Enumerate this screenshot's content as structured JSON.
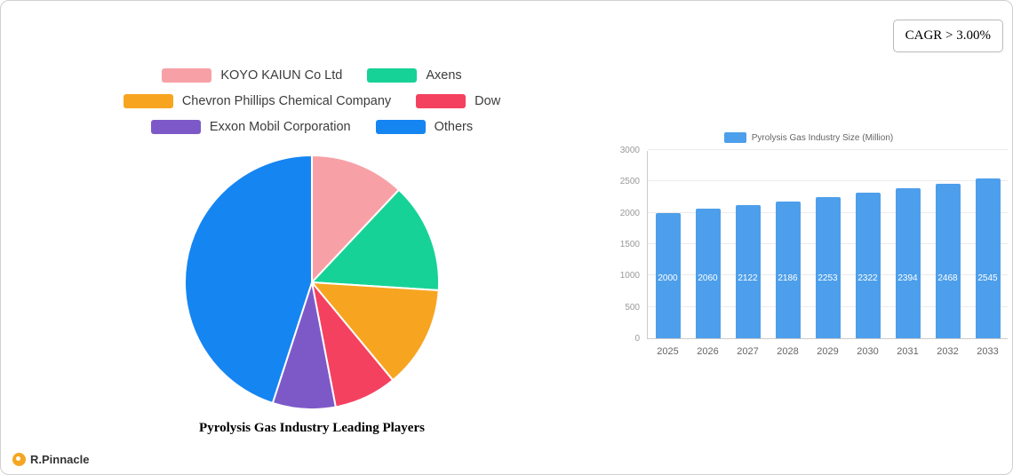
{
  "cagr": {
    "label": "CAGR > 3.00%"
  },
  "brand": {
    "name": "R.Pinnacle"
  },
  "chart_data": [
    {
      "type": "pie",
      "title": "Pyrolysis Gas Industry Leading Players",
      "legend_position": "top",
      "slices": [
        {
          "label": "KOYO KAIUN Co  Ltd",
          "value": 12,
          "color": "#F7A1A6"
        },
        {
          "label": "Axens",
          "value": 14,
          "color": "#17D296"
        },
        {
          "label": "Chevron Phillips Chemical Company",
          "value": 13,
          "color": "#F7A521"
        },
        {
          "label": "Dow",
          "value": 8,
          "color": "#F4415F"
        },
        {
          "label": "Exxon Mobil Corporation",
          "value": 8,
          "color": "#7D59C8"
        },
        {
          "label": "Others",
          "value": 45,
          "color": "#1585F2"
        }
      ],
      "legend_rows": [
        [
          0,
          1
        ],
        [
          2,
          3
        ],
        [
          4,
          5
        ]
      ]
    },
    {
      "type": "bar",
      "legend": "Pyrolysis Gas Industry Size (Million)",
      "bar_color": "#4D9FEB",
      "categories": [
        "2025",
        "2026",
        "2027",
        "2028",
        "2029",
        "2030",
        "2031",
        "2032",
        "2033"
      ],
      "values": [
        2000,
        2060,
        2122,
        2186,
        2253,
        2322,
        2394,
        2468,
        2545
      ],
      "y_ticks": [
        0,
        500,
        1000,
        1500,
        2000,
        2500,
        3000
      ],
      "ylim": [
        0,
        3000
      ],
      "grid": true,
      "legend_position": "top"
    }
  ]
}
